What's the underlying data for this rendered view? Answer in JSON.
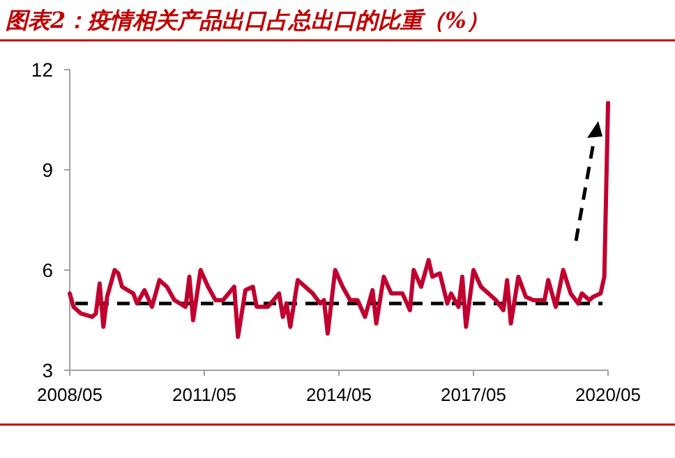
{
  "chart_data": {
    "type": "line",
    "title": "图表2：疫情相关产品出口占总出口的比重（%）",
    "x": [
      "2008-05",
      "2008-06",
      "2008-08",
      "2008-11",
      "2008-12",
      "2009-01",
      "2009-02",
      "2009-03",
      "2009-05",
      "2009-06",
      "2009-07",
      "2009-10",
      "2009-11",
      "2010-01",
      "2010-03",
      "2010-05",
      "2010-07",
      "2010-09",
      "2010-12",
      "2011-01",
      "2011-02",
      "2011-04",
      "2011-06",
      "2011-08",
      "2011-10",
      "2012-01",
      "2012-02",
      "2012-04",
      "2012-06",
      "2012-07",
      "2012-10",
      "2013-01",
      "2013-02",
      "2013-03",
      "2013-04",
      "2013-06",
      "2013-08",
      "2013-10",
      "2013-12",
      "2014-01",
      "2014-02",
      "2014-04",
      "2014-06",
      "2014-08",
      "2014-10",
      "2014-12",
      "2015-02",
      "2015-03",
      "2015-05",
      "2015-07",
      "2015-10",
      "2015-12",
      "2016-01",
      "2016-03",
      "2016-05",
      "2016-06",
      "2016-08",
      "2016-10",
      "2016-11",
      "2017-01",
      "2017-02",
      "2017-03",
      "2017-05",
      "2017-07",
      "2017-09",
      "2017-11",
      "2018-01",
      "2018-02",
      "2018-03",
      "2018-05",
      "2018-07",
      "2018-09",
      "2018-12",
      "2019-01",
      "2019-03",
      "2019-05",
      "2019-07",
      "2019-09",
      "2019-10",
      "2019-12",
      "2020-01",
      "2020-03",
      "2020-04",
      "2020-05"
    ],
    "series": [
      {
        "color": "#c0002f",
        "values": [
          5.3,
          4.9,
          4.7,
          4.6,
          4.7,
          5.6,
          4.3,
          5.2,
          6.0,
          5.9,
          5.5,
          5.3,
          5.0,
          5.4,
          4.9,
          5.7,
          5.5,
          5.1,
          4.9,
          5.8,
          4.5,
          6.0,
          5.5,
          5.1,
          5.1,
          5.5,
          4.0,
          5.4,
          5.5,
          4.9,
          4.9,
          5.3,
          4.6,
          5.0,
          4.3,
          5.7,
          5.5,
          5.3,
          5.0,
          5.1,
          4.1,
          6.0,
          5.5,
          5.1,
          5.1,
          4.6,
          5.4,
          4.4,
          5.8,
          5.3,
          5.3,
          4.8,
          6.0,
          5.5,
          6.3,
          5.8,
          5.9,
          5.0,
          5.3,
          4.9,
          5.8,
          4.3,
          6.0,
          5.5,
          5.3,
          5.1,
          4.8,
          5.7,
          4.4,
          5.8,
          5.2,
          5.1,
          5.1,
          5.7,
          4.9,
          6.0,
          5.3,
          5.0,
          5.3,
          5.1,
          5.2,
          5.3,
          5.8,
          11.0
        ]
      }
    ],
    "xlim": [
      "2008-05",
      "2020-05"
    ],
    "xticks": [
      {
        "value": "2008-05",
        "label": "2008/05"
      },
      {
        "value": "2011-05",
        "label": "2011/05"
      },
      {
        "value": "2014-05",
        "label": "2014/05"
      },
      {
        "value": "2017-05",
        "label": "2017/05"
      },
      {
        "value": "2020-05",
        "label": "2020/05"
      }
    ],
    "ylim": [
      3,
      12
    ],
    "yticks": [
      3,
      6,
      9,
      12
    ],
    "grid": false,
    "marker": "none",
    "line_style": "solid",
    "ref_lines": [
      {
        "axis": "y",
        "value": 5,
        "color": "#000000",
        "line_style": "dashed"
      }
    ]
  }
}
